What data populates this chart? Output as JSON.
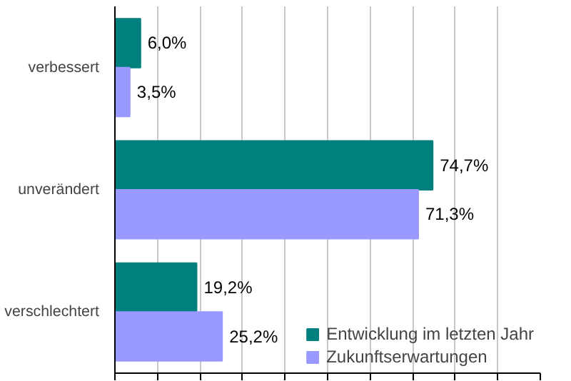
{
  "chart_data": {
    "type": "bar",
    "orientation": "horizontal",
    "categories": [
      "verbessert",
      "unverändert",
      "verschlechtert"
    ],
    "series": [
      {
        "name": "Entwicklung im letzten Jahr",
        "color": "#007f7f",
        "values": [
          6.0,
          74.7,
          19.2
        ],
        "value_labels": [
          "6,0%",
          "74,7%",
          "19,2%"
        ]
      },
      {
        "name": "Zukunftserwartungen",
        "color": "#9999ff",
        "values": [
          3.5,
          71.3,
          25.2
        ],
        "value_labels": [
          "3,5%",
          "71,3%",
          "25,2%"
        ]
      }
    ],
    "xlim": [
      0,
      100
    ],
    "xticks": [
      {
        "value": 0,
        "label": null
      },
      {
        "value": 10,
        "label": null
      },
      {
        "value": 20,
        "label": null
      },
      {
        "value": 30,
        "label": null
      },
      {
        "value": 40,
        "label": null
      },
      {
        "value": 50,
        "label": null
      },
      {
        "value": 60,
        "label": null
      },
      {
        "value": 70,
        "label": null
      },
      {
        "value": 80,
        "label": null
      },
      {
        "value": 90,
        "label": null
      },
      {
        "value": 100,
        "label": null
      }
    ],
    "grid": "x",
    "legend": "bottom right",
    "tick_labels": "y"
  }
}
